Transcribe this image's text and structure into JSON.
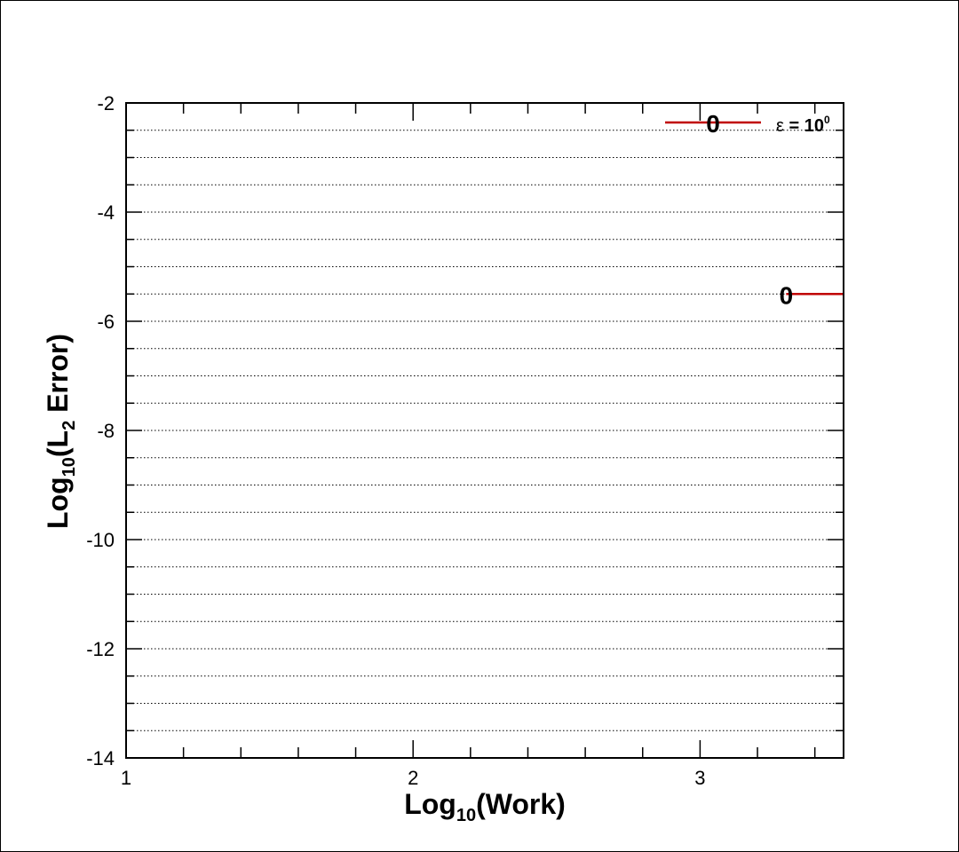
{
  "chart_data": {
    "type": "line",
    "xlabel": {
      "base": "Log",
      "sub": "10",
      "rest": "(Work)"
    },
    "ylabel": {
      "base": "Log",
      "sub": "10",
      "paren": "(L",
      "sub2": "2",
      "rest": " Error)"
    },
    "xlim": [
      1,
      3.5
    ],
    "ylim": [
      -14,
      -2
    ],
    "x_ticks": [
      1,
      2,
      3
    ],
    "x_tick_labels": [
      "1",
      "2",
      "3"
    ],
    "y_ticks": [
      -14,
      -12,
      -10,
      -8,
      -6,
      -4,
      -2
    ],
    "y_tick_labels": [
      "-14",
      "-12",
      "-10",
      "-8",
      "-6",
      "-4",
      "-2"
    ],
    "y_gridlines": "dotted at every 0.5",
    "legend_position": "top-right",
    "series": [
      {
        "name": "ε = 10⁰",
        "legend": {
          "epsilon": "ε",
          "eq": " = 10",
          "sup": "0"
        },
        "color": "#c00000",
        "marker": "0",
        "x": [
          3.3,
          3.5
        ],
        "y": [
          -5.5,
          -5.5
        ]
      }
    ]
  }
}
